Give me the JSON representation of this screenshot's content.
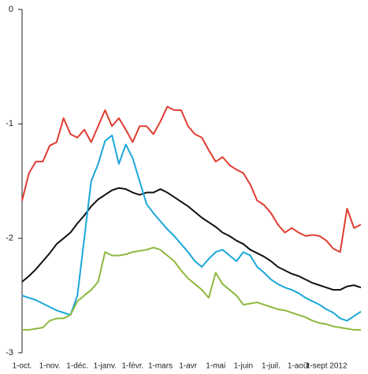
{
  "chart_data": {
    "type": "line",
    "categories": [
      "1-oct.",
      null,
      null,
      null,
      "1-nov.",
      null,
      null,
      null,
      "1-déc.",
      null,
      null,
      null,
      "1-janv.",
      null,
      null,
      null,
      "1-févr.",
      null,
      null,
      null,
      "1-mars",
      null,
      null,
      null,
      "1-avr",
      null,
      null,
      null,
      "1-mai",
      null,
      null,
      null,
      "1-juin",
      null,
      null,
      null,
      "1-juil.",
      null,
      null,
      null,
      "1-août",
      null,
      null,
      null,
      "1-sept 2012",
      null,
      null,
      null,
      null,
      null
    ],
    "series": [
      {
        "color": "#e03c31",
        "values": [
          -1.67,
          -1.43,
          -1.33,
          -1.33,
          -1.19,
          -1.16,
          -0.95,
          -1.09,
          -1.12,
          -1.05,
          -1.16,
          -1.02,
          -0.88,
          -1.02,
          -0.95,
          -1.05,
          -1.16,
          -1.02,
          -1.02,
          -1.09,
          -0.98,
          -0.85,
          -0.88,
          -0.88,
          -1.02,
          -1.09,
          -1.12,
          -1.23,
          -1.33,
          -1.29,
          -1.36,
          -1.4,
          -1.43,
          -1.53,
          -1.67,
          -1.71,
          -1.78,
          -1.88,
          -1.95,
          -1.91,
          -1.95,
          -1.98,
          -1.97,
          -1.98,
          -2.02,
          -2.09,
          -2.12,
          -1.74,
          -1.91,
          -1.88
        ]
      },
      {
        "color": "#111111",
        "values": [
          -2.38,
          -2.33,
          -2.27,
          -2.2,
          -2.13,
          -2.05,
          -2.0,
          -1.95,
          -1.87,
          -1.8,
          -1.72,
          -1.66,
          -1.62,
          -1.58,
          -1.56,
          -1.57,
          -1.6,
          -1.62,
          -1.6,
          -1.6,
          -1.57,
          -1.6,
          -1.64,
          -1.68,
          -1.72,
          -1.77,
          -1.82,
          -1.86,
          -1.9,
          -1.95,
          -1.98,
          -2.02,
          -2.05,
          -2.1,
          -2.13,
          -2.16,
          -2.2,
          -2.25,
          -2.28,
          -2.31,
          -2.33,
          -2.36,
          -2.39,
          -2.41,
          -2.43,
          -2.45,
          -2.45,
          -2.42,
          -2.41,
          -2.43
        ]
      },
      {
        "color": "#1aa7d8",
        "values": [
          -2.5,
          -2.52,
          -2.54,
          -2.57,
          -2.6,
          -2.63,
          -2.65,
          -2.67,
          -2.5,
          -2.0,
          -1.5,
          -1.35,
          -1.15,
          -1.1,
          -1.35,
          -1.18,
          -1.3,
          -1.5,
          -1.7,
          -1.78,
          -1.85,
          -1.92,
          -1.98,
          -2.05,
          -2.12,
          -2.2,
          -2.25,
          -2.18,
          -2.12,
          -2.1,
          -2.15,
          -2.2,
          -2.12,
          -2.15,
          -2.25,
          -2.3,
          -2.36,
          -2.4,
          -2.43,
          -2.45,
          -2.48,
          -2.52,
          -2.55,
          -2.58,
          -2.62,
          -2.65,
          -2.7,
          -2.72,
          -2.68,
          -2.64
        ]
      },
      {
        "color": "#8db93d",
        "values": [
          -2.8,
          -2.8,
          -2.79,
          -2.78,
          -2.72,
          -2.7,
          -2.7,
          -2.67,
          -2.55,
          -2.5,
          -2.45,
          -2.38,
          -2.12,
          -2.15,
          -2.15,
          -2.14,
          -2.12,
          -2.11,
          -2.1,
          -2.08,
          -2.1,
          -2.15,
          -2.2,
          -2.28,
          -2.35,
          -2.4,
          -2.45,
          -2.52,
          -2.3,
          -2.4,
          -2.45,
          -2.5,
          -2.58,
          -2.57,
          -2.56,
          -2.58,
          -2.6,
          -2.62,
          -2.63,
          -2.65,
          -2.67,
          -2.69,
          -2.72,
          -2.74,
          -2.75,
          -2.77,
          -2.78,
          -2.79,
          -2.8,
          -2.8
        ]
      }
    ],
    "ylim": [
      -3,
      0
    ],
    "yticks": [
      0,
      -1,
      -2,
      -3
    ],
    "grid": false
  }
}
